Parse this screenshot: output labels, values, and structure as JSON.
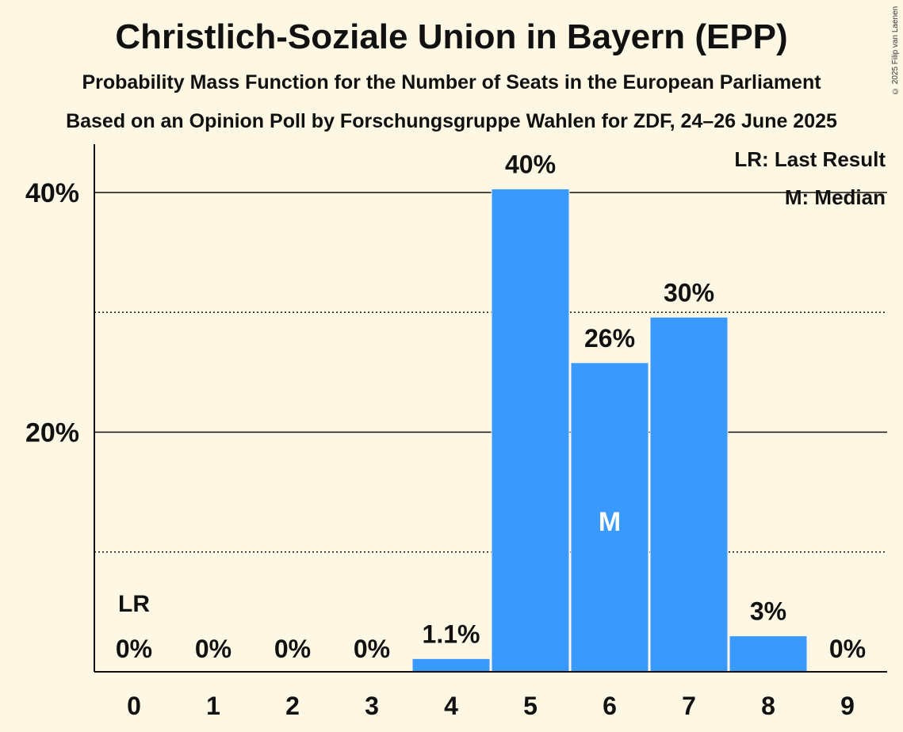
{
  "chart_data": {
    "type": "bar",
    "title": "Christlich-Soziale Union in Bayern (EPP)",
    "subtitle": "Probability Mass Function for the Number of Seats in the European Parliament",
    "subtitle2": "Based on an Opinion Poll by Forschungsgruppe Wahlen for ZDF, 24–26 June 2025",
    "copyright": "© 2025 Filip van Laenen",
    "categories": [
      "0",
      "1",
      "2",
      "3",
      "4",
      "5",
      "6",
      "7",
      "8",
      "9"
    ],
    "values": [
      0,
      0,
      0,
      0,
      1.1,
      40.3,
      25.8,
      29.6,
      3.0,
      0
    ],
    "value_labels": [
      "0%",
      "0%",
      "0%",
      "0%",
      "1.1%",
      "40%",
      "26%",
      "30%",
      "3%",
      "0%"
    ],
    "ylim": [
      0,
      44
    ],
    "yticks": [
      {
        "value": 20,
        "label": "20%",
        "style": "solid"
      },
      {
        "value": 40,
        "label": "40%",
        "style": "solid"
      }
    ],
    "minor_gridlines": [
      10,
      30
    ],
    "xlabel": "",
    "ylabel": "",
    "last_result_index": 0,
    "last_result_marker": "LR",
    "median_index": 6,
    "median_marker": "M",
    "bar_color": "#3a99fd",
    "legend": [
      "LR: Last Result",
      "M: Median"
    ],
    "legend_position": "top-right"
  }
}
